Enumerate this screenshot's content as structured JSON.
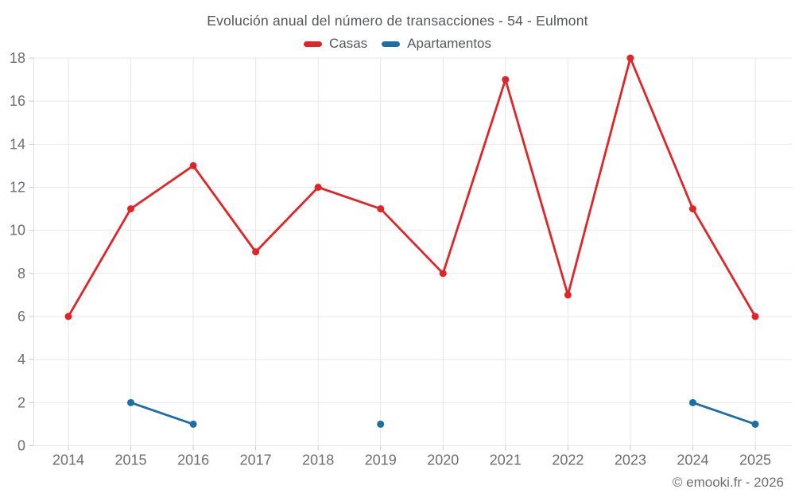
{
  "chart_data": {
    "type": "line",
    "title": "Evolución anual del número de transacciones - 54 - Eulmont",
    "categories": [
      "2014",
      "2015",
      "2016",
      "2017",
      "2018",
      "2019",
      "2020",
      "2021",
      "2022",
      "2023",
      "2024",
      "2025"
    ],
    "series": [
      {
        "name": "Casas",
        "color": "#e02529",
        "values": [
          6,
          11,
          13,
          9,
          12,
          11,
          8,
          17,
          7,
          18,
          11,
          6
        ]
      },
      {
        "name": "Apartamentos",
        "color": "#1c6ea4",
        "values": [
          null,
          2,
          1,
          null,
          null,
          1,
          null,
          null,
          null,
          null,
          2,
          1
        ]
      }
    ],
    "ylim": [
      0,
      18
    ],
    "ytick_step": 2,
    "xlabel": "",
    "ylabel": "",
    "grid": true,
    "legend_position": "top"
  },
  "footer": {
    "credit": "© emooki.fr - 2026"
  },
  "colors": {
    "grid": "#e7e7e7",
    "axis": "#e0e0e0",
    "tick": "#c9c9c9",
    "label": "#6b6e73",
    "title": "#54575b",
    "background": "#ffffff"
  }
}
